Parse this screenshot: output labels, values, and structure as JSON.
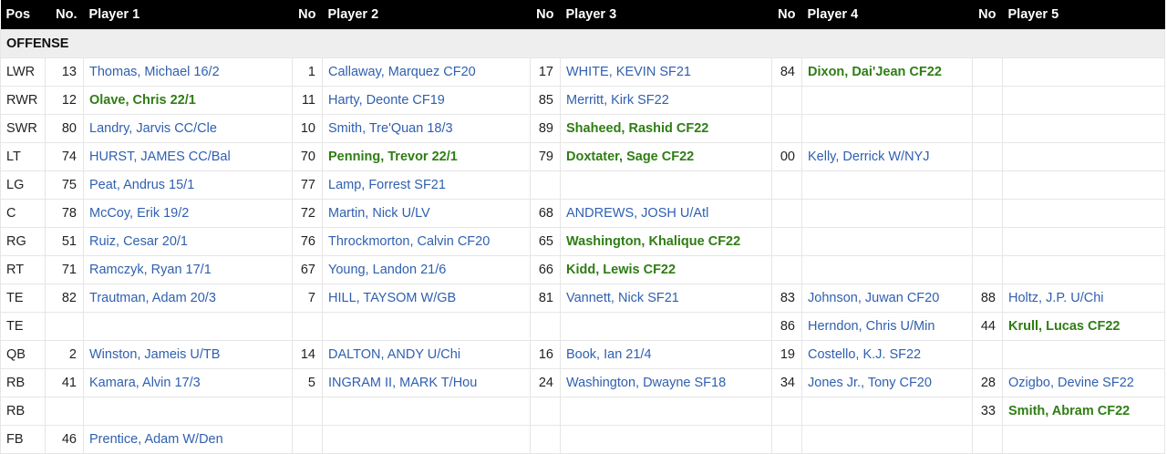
{
  "headers": [
    "Pos",
    "No.",
    "Player 1",
    "No",
    "Player 2",
    "No",
    "Player 3",
    "No",
    "Player 4",
    "No",
    "Player 5"
  ],
  "section_label": "OFFENSE",
  "highlight_color": "#2f7d14",
  "link_color": "#3060b0",
  "rows": [
    {
      "pos": "LWR",
      "players": [
        {
          "no": "13",
          "name": "Thomas, Michael 16/2"
        },
        {
          "no": "1",
          "name": "Callaway, Marquez CF20"
        },
        {
          "no": "17",
          "name": "WHITE, KEVIN SF21"
        },
        {
          "no": "84",
          "name": "Dixon, Dai'Jean CF22",
          "new": true
        },
        null
      ]
    },
    {
      "pos": "RWR",
      "players": [
        {
          "no": "12",
          "name": "Olave, Chris 22/1",
          "new": true
        },
        {
          "no": "11",
          "name": "Harty, Deonte CF19"
        },
        {
          "no": "85",
          "name": "Merritt, Kirk SF22"
        },
        null,
        null
      ]
    },
    {
      "pos": "SWR",
      "players": [
        {
          "no": "80",
          "name": "Landry, Jarvis CC/Cle"
        },
        {
          "no": "10",
          "name": "Smith, Tre'Quan 18/3"
        },
        {
          "no": "89",
          "name": "Shaheed, Rashid CF22",
          "new": true
        },
        null,
        null
      ]
    },
    {
      "pos": "LT",
      "players": [
        {
          "no": "74",
          "name": "HURST, JAMES CC/Bal"
        },
        {
          "no": "70",
          "name": "Penning, Trevor 22/1",
          "new": true
        },
        {
          "no": "79",
          "name": "Doxtater, Sage CF22",
          "new": true
        },
        {
          "no": "00",
          "name": "Kelly, Derrick W/NYJ"
        },
        null
      ]
    },
    {
      "pos": "LG",
      "players": [
        {
          "no": "75",
          "name": "Peat, Andrus 15/1"
        },
        {
          "no": "77",
          "name": "Lamp, Forrest SF21"
        },
        null,
        null,
        null
      ]
    },
    {
      "pos": "C",
      "players": [
        {
          "no": "78",
          "name": "McCoy, Erik 19/2"
        },
        {
          "no": "72",
          "name": "Martin, Nick U/LV"
        },
        {
          "no": "68",
          "name": "ANDREWS, JOSH U/Atl"
        },
        null,
        null
      ]
    },
    {
      "pos": "RG",
      "players": [
        {
          "no": "51",
          "name": "Ruiz, Cesar 20/1"
        },
        {
          "no": "76",
          "name": "Throckmorton, Calvin CF20"
        },
        {
          "no": "65",
          "name": "Washington, Khalique CF22",
          "new": true
        },
        null,
        null
      ]
    },
    {
      "pos": "RT",
      "players": [
        {
          "no": "71",
          "name": "Ramczyk, Ryan 17/1"
        },
        {
          "no": "67",
          "name": "Young, Landon 21/6"
        },
        {
          "no": "66",
          "name": "Kidd, Lewis CF22",
          "new": true
        },
        null,
        null
      ]
    },
    {
      "pos": "TE",
      "players": [
        {
          "no": "82",
          "name": "Trautman, Adam 20/3"
        },
        {
          "no": "7",
          "name": "HILL, TAYSOM W/GB"
        },
        {
          "no": "81",
          "name": "Vannett, Nick SF21"
        },
        {
          "no": "83",
          "name": "Johnson, Juwan CF20"
        },
        {
          "no": "88",
          "name": "Holtz, J.P. U/Chi"
        }
      ]
    },
    {
      "pos": "TE",
      "players": [
        null,
        null,
        null,
        {
          "no": "86",
          "name": "Herndon, Chris U/Min"
        },
        {
          "no": "44",
          "name": "Krull, Lucas CF22",
          "new": true
        }
      ]
    },
    {
      "pos": "QB",
      "players": [
        {
          "no": "2",
          "name": "Winston, Jameis U/TB"
        },
        {
          "no": "14",
          "name": "DALTON, ANDY U/Chi"
        },
        {
          "no": "16",
          "name": "Book, Ian 21/4"
        },
        {
          "no": "19",
          "name": "Costello, K.J. SF22"
        },
        null
      ]
    },
    {
      "pos": "RB",
      "players": [
        {
          "no": "41",
          "name": "Kamara, Alvin 17/3"
        },
        {
          "no": "5",
          "name": "INGRAM II, MARK T/Hou"
        },
        {
          "no": "24",
          "name": "Washington, Dwayne SF18"
        },
        {
          "no": "34",
          "name": "Jones Jr., Tony CF20"
        },
        {
          "no": "28",
          "name": "Ozigbo, Devine SF22"
        }
      ]
    },
    {
      "pos": "RB",
      "players": [
        null,
        null,
        null,
        null,
        {
          "no": "33",
          "name": "Smith, Abram CF22",
          "new": true
        }
      ]
    },
    {
      "pos": "FB",
      "players": [
        {
          "no": "46",
          "name": "Prentice, Adam W/Den"
        },
        null,
        null,
        null,
        null
      ]
    }
  ]
}
